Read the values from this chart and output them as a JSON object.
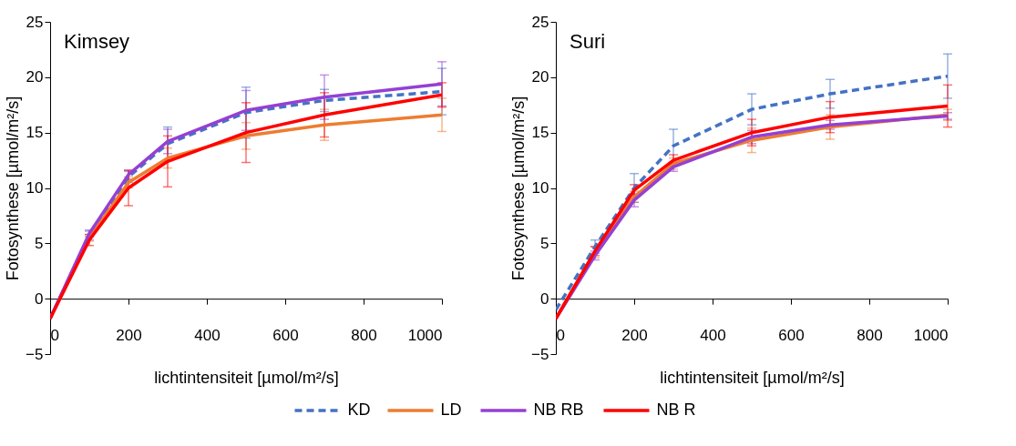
{
  "chart_data": [
    {
      "type": "line",
      "title": "Kimsey",
      "xlabel": "lichtintensiteit [µmol/m²/s]",
      "ylabel": "Fotosynthese [µmol/m²/s]",
      "x": [
        0,
        100,
        200,
        300,
        500,
        700,
        1000
      ],
      "xlim": [
        0,
        1000
      ],
      "xticks": [
        0,
        200,
        400,
        600,
        800,
        1000
      ],
      "ylim": [
        -5,
        25
      ],
      "yticks": [
        -5,
        0,
        5,
        10,
        15,
        20,
        25
      ],
      "grid": false,
      "legend": "bottom",
      "marker": "none",
      "series": [
        {
          "name": "KD",
          "color": "#4472c4",
          "line_style": "dashed",
          "values": [
            -1.8,
            5.7,
            11.0,
            14.0,
            16.8,
            17.9,
            18.7
          ],
          "errors": [
            null,
            0.4,
            0.5,
            1.5,
            2.3,
            1.0,
            2.1
          ]
        },
        {
          "name": "LD",
          "color": "#ed7d31",
          "line_style": "solid",
          "values": [
            -1.8,
            5.5,
            10.5,
            12.7,
            14.7,
            15.7,
            16.6
          ],
          "errors": [
            null,
            0.3,
            0.5,
            0.9,
            1.2,
            1.4,
            1.5
          ]
        },
        {
          "name": "NB RB",
          "color": "#9440d4",
          "line_style": "solid",
          "values": [
            -1.8,
            5.9,
            11.2,
            14.2,
            17.0,
            18.2,
            19.4
          ],
          "errors": [
            null,
            0.3,
            0.4,
            1.1,
            1.8,
            2.0,
            2.0
          ]
        },
        {
          "name": "NB R",
          "color": "#ff0000",
          "line_style": "solid",
          "values": [
            -1.8,
            5.3,
            10.0,
            12.4,
            15.0,
            16.6,
            18.4
          ],
          "errors": [
            null,
            0.5,
            1.6,
            2.3,
            2.7,
            2.0,
            1.1
          ]
        }
      ]
    },
    {
      "type": "line",
      "title": "Suri",
      "xlabel": "lichtintensiteit [µmol/m²/s]",
      "ylabel": "Fotosynthese [µmol/m²/s]",
      "x": [
        0,
        100,
        200,
        300,
        500,
        700,
        1000
      ],
      "xlim": [
        0,
        1000
      ],
      "xticks": [
        0,
        200,
        400,
        600,
        800,
        1000
      ],
      "ylim": [
        -5,
        25
      ],
      "yticks": [
        -5,
        0,
        5,
        10,
        15,
        20,
        25
      ],
      "grid": false,
      "legend": "bottom",
      "marker": "none",
      "series": [
        {
          "name": "KD",
          "color": "#4472c4",
          "line_style": "dashed",
          "values": [
            -1.0,
            4.7,
            10.0,
            13.8,
            17.1,
            18.5,
            20.1
          ],
          "errors": [
            null,
            0.6,
            1.3,
            1.5,
            1.4,
            1.3,
            2.0
          ]
        },
        {
          "name": "LD",
          "color": "#ed7d31",
          "line_style": "solid",
          "values": [
            -1.8,
            4.2,
            9.2,
            12.2,
            14.3,
            15.5,
            16.6
          ],
          "errors": [
            null,
            0.5,
            0.5,
            0.5,
            1.1,
            1.1,
            0.5
          ]
        },
        {
          "name": "NB RB",
          "color": "#9440d4",
          "line_style": "solid",
          "values": [
            -1.8,
            3.9,
            8.9,
            11.9,
            14.6,
            15.7,
            16.5
          ],
          "errors": [
            null,
            0.4,
            0.6,
            0.4,
            0.6,
            0.4,
            0.3
          ]
        },
        {
          "name": "NB R",
          "color": "#ff0000",
          "line_style": "solid",
          "values": [
            -1.8,
            4.3,
            9.8,
            12.5,
            15.0,
            16.4,
            17.4
          ],
          "errors": [
            null,
            0.4,
            0.5,
            0.5,
            1.2,
            1.4,
            1.9
          ]
        }
      ]
    }
  ]
}
